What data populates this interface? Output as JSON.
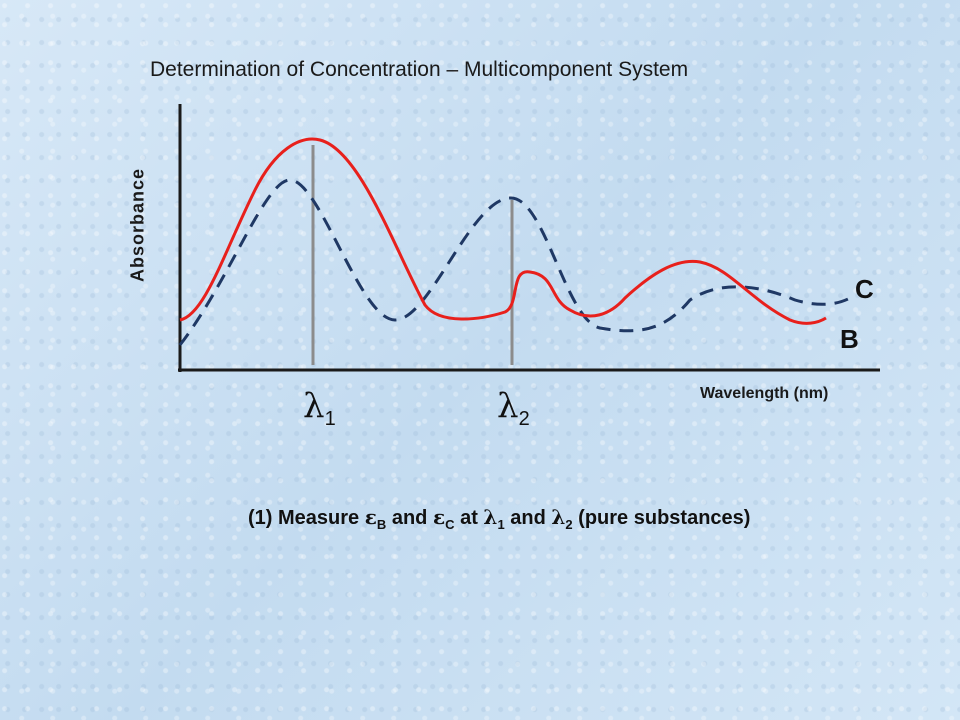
{
  "title": "Determination of Concentration – Multicomponent System",
  "ylabel": "Absorbance",
  "xlabel": "Wavelength (nm)",
  "ticks": {
    "l1_symbol": "λ",
    "l1_sub": "1",
    "l2_symbol": "λ",
    "l2_sub": "2"
  },
  "series_labels": {
    "c": "C",
    "b": "B"
  },
  "note": {
    "prefix": "(1)  Measure ",
    "eps1": "ε",
    "eps1_sub": "B",
    "and1": " and ",
    "eps2": "ε",
    "eps2_sub": "C",
    "at": " at ",
    "lam1": "λ",
    "lam1_sub": "1",
    "and2": " and ",
    "lam2": "λ",
    "lam2_sub": "2",
    "suffix": " (pure substances)"
  },
  "colors": {
    "solid_curve": "#e8201c",
    "dashed_curve": "#1f3864",
    "axis": "#1a1a1a",
    "marker": "#8c8c8c"
  }
}
